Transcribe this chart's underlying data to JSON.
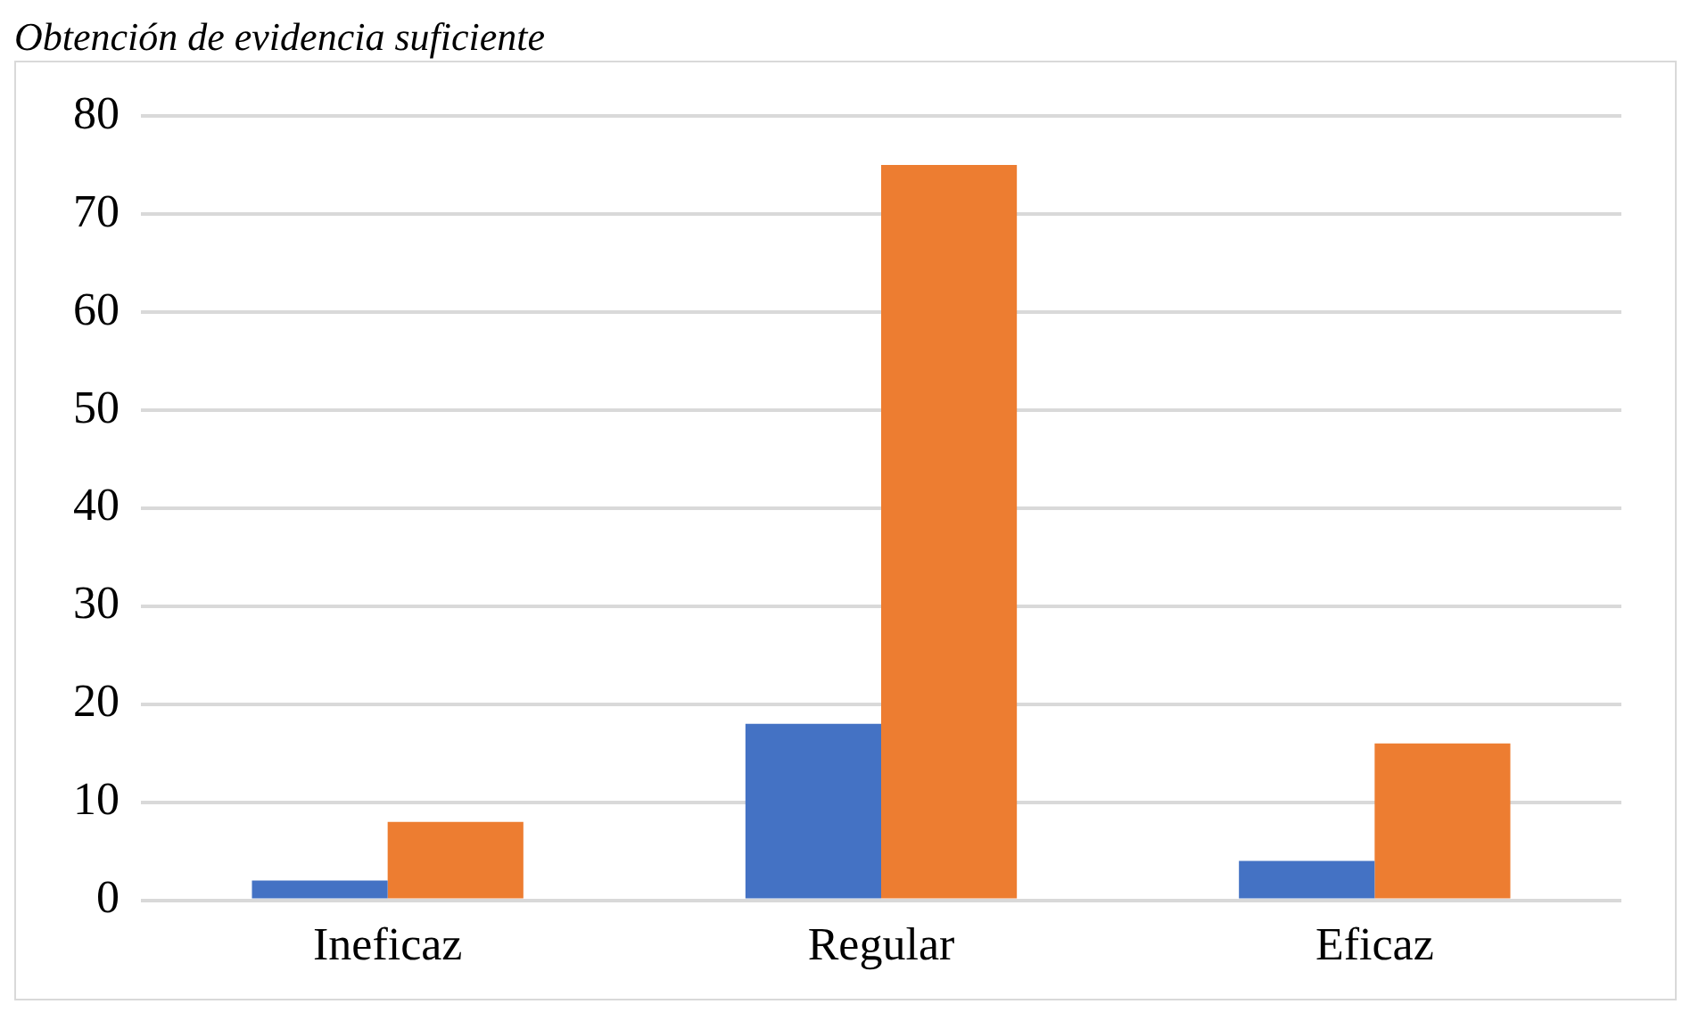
{
  "chart_data": {
    "type": "bar",
    "title": "Obtención de evidencia suficiente",
    "categories": [
      "Ineficaz",
      "Regular",
      "Eficaz"
    ],
    "series": [
      {
        "color": "#4472c4",
        "values": [
          2,
          18,
          4
        ]
      },
      {
        "color": "#ed7d31",
        "values": [
          8,
          75,
          16
        ]
      }
    ],
    "ylim": [
      0,
      80
    ],
    "yticks": [
      0,
      10,
      20,
      30,
      40,
      50,
      60,
      70,
      80
    ],
    "grid": "y",
    "legend": false
  }
}
